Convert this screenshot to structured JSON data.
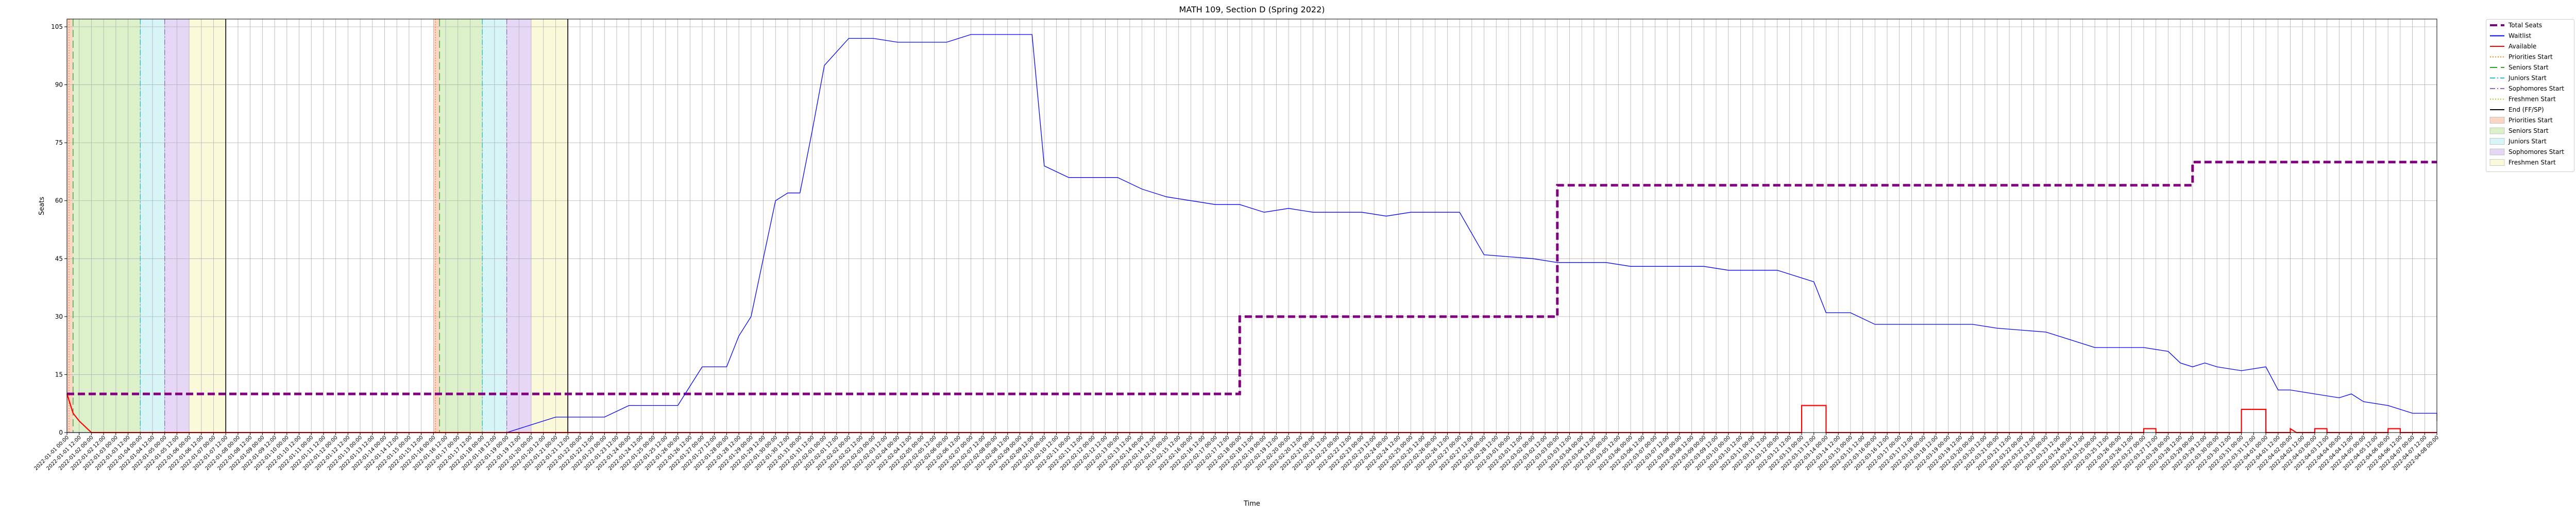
{
  "chart_data": {
    "type": "line",
    "title": "MATH 109, Section D (Spring 2022)",
    "xlabel": "Time",
    "ylabel": "Seats",
    "ylim": [
      0,
      107
    ],
    "yticks": [
      0,
      15,
      30,
      45,
      60,
      75,
      90,
      105
    ],
    "grid": true,
    "legend_placement": "outside-right",
    "time_start": "2022-01-01",
    "time_end": "2022-04-08",
    "x_tick_every_hours": 12,
    "series": [
      {
        "name": "Total Seats",
        "color": "#800080",
        "style": "dashed",
        "points": [
          [
            "2022-01-01",
            10
          ],
          [
            "2022-02-18",
            10
          ],
          [
            "2022-02-18",
            30
          ],
          [
            "2022-03-03",
            30
          ],
          [
            "2022-03-03",
            64
          ],
          [
            "2022-03-29",
            64
          ],
          [
            "2022-03-29",
            70
          ],
          [
            "2022-04-08",
            70
          ]
        ]
      },
      {
        "name": "Waitlist",
        "color": "#0000ff",
        "style": "solid",
        "points": [
          [
            "2022-01-01",
            0
          ],
          [
            "2022-01-19",
            0
          ],
          [
            "2022-01-20",
            2
          ],
          [
            "2022-01-21",
            4
          ],
          [
            "2022-01-23",
            4
          ],
          [
            "2022-01-24",
            7
          ],
          [
            "2022-01-26",
            7
          ],
          [
            "2022-01-26T12:00",
            12
          ],
          [
            "2022-01-27",
            17
          ],
          [
            "2022-01-28",
            17
          ],
          [
            "2022-01-28T12:00",
            25
          ],
          [
            "2022-01-29",
            30
          ],
          [
            "2022-01-29T12:00",
            45
          ],
          [
            "2022-01-30",
            60
          ],
          [
            "2022-01-30T12:00",
            62
          ],
          [
            "2022-01-31",
            62
          ],
          [
            "2022-01-31T12:00",
            78
          ],
          [
            "2022-02-01",
            95
          ],
          [
            "2022-02-02",
            102
          ],
          [
            "2022-02-03",
            102
          ],
          [
            "2022-02-04",
            101
          ],
          [
            "2022-02-05",
            101
          ],
          [
            "2022-02-06",
            101
          ],
          [
            "2022-02-07",
            103
          ],
          [
            "2022-02-09",
            103
          ],
          [
            "2022-02-09T12:00",
            103
          ],
          [
            "2022-02-10",
            69
          ],
          [
            "2022-02-11",
            66
          ],
          [
            "2022-02-13",
            66
          ],
          [
            "2022-02-14",
            63
          ],
          [
            "2022-02-15",
            61
          ],
          [
            "2022-02-16",
            60
          ],
          [
            "2022-02-17",
            59
          ],
          [
            "2022-02-18",
            59
          ],
          [
            "2022-02-19",
            57
          ],
          [
            "2022-02-20",
            58
          ],
          [
            "2022-02-21",
            57
          ],
          [
            "2022-02-22",
            57
          ],
          [
            "2022-02-23",
            57
          ],
          [
            "2022-02-24",
            56
          ],
          [
            "2022-02-25",
            57
          ],
          [
            "2022-02-27",
            57
          ],
          [
            "2022-02-28",
            46
          ],
          [
            "2022-03-02",
            45
          ],
          [
            "2022-03-03",
            44
          ],
          [
            "2022-03-05",
            44
          ],
          [
            "2022-03-06",
            43
          ],
          [
            "2022-03-09",
            43
          ],
          [
            "2022-03-10",
            42
          ],
          [
            "2022-03-12",
            42
          ],
          [
            "2022-03-13",
            40
          ],
          [
            "2022-03-13T12:00",
            39
          ],
          [
            "2022-03-14",
            31
          ],
          [
            "2022-03-15",
            31
          ],
          [
            "2022-03-16",
            28
          ],
          [
            "2022-03-19",
            28
          ],
          [
            "2022-03-20",
            28
          ],
          [
            "2022-03-21",
            27
          ],
          [
            "2022-03-23",
            26
          ],
          [
            "2022-03-24",
            24
          ],
          [
            "2022-03-25",
            22
          ],
          [
            "2022-03-26",
            22
          ],
          [
            "2022-03-27",
            22
          ],
          [
            "2022-03-28",
            21
          ],
          [
            "2022-03-28T12:00",
            18
          ],
          [
            "2022-03-29",
            17
          ],
          [
            "2022-03-29T12:00",
            18
          ],
          [
            "2022-03-30",
            17
          ],
          [
            "2022-03-31",
            16
          ],
          [
            "2022-04-01",
            17
          ],
          [
            "2022-04-01T12:00",
            11
          ],
          [
            "2022-04-02",
            11
          ],
          [
            "2022-04-03",
            10
          ],
          [
            "2022-04-04",
            9
          ],
          [
            "2022-04-04T12:00",
            10
          ],
          [
            "2022-04-05",
            8
          ],
          [
            "2022-04-06",
            7
          ],
          [
            "2022-04-07",
            5
          ],
          [
            "2022-04-08",
            5
          ],
          [
            "2022-04-08",
            3
          ]
        ]
      },
      {
        "name": "Available",
        "color": "#ff0000",
        "style": "solid",
        "points": [
          [
            "2022-01-01",
            10
          ],
          [
            "2022-01-01T06:00",
            5
          ],
          [
            "2022-01-01T12:00",
            3
          ],
          [
            "2022-01-02",
            0
          ],
          [
            "2022-03-13",
            0
          ],
          [
            "2022-03-13",
            7
          ],
          [
            "2022-03-14",
            7
          ],
          [
            "2022-03-14",
            0
          ],
          [
            "2022-03-27",
            0
          ],
          [
            "2022-03-27",
            1
          ],
          [
            "2022-03-27T12:00",
            1
          ],
          [
            "2022-03-27T12:00",
            0
          ],
          [
            "2022-03-31",
            0
          ],
          [
            "2022-03-31",
            6
          ],
          [
            "2022-04-01",
            6
          ],
          [
            "2022-04-01",
            0
          ],
          [
            "2022-04-02",
            0
          ],
          [
            "2022-04-02",
            1
          ],
          [
            "2022-04-02T06:00",
            0
          ],
          [
            "2022-04-03",
            0
          ],
          [
            "2022-04-03",
            1
          ],
          [
            "2022-04-03T12:00",
            1
          ],
          [
            "2022-04-03T12:00",
            0
          ],
          [
            "2022-04-06",
            0
          ],
          [
            "2022-04-06",
            1
          ],
          [
            "2022-04-06T12:00",
            1
          ],
          [
            "2022-04-06T12:00",
            0
          ],
          [
            "2022-04-08",
            0
          ]
        ]
      }
    ],
    "phases": [
      {
        "label": "Priorities Start",
        "color": "#f4a582",
        "start": "2022-01-01",
        "end": "2022-01-01T06:00"
      },
      {
        "label": "Seniors Start",
        "color": "#b2df8a",
        "start": "2022-01-01T06:00",
        "end": "2022-01-04"
      },
      {
        "label": "Juniors Start",
        "color": "#a6e6ea",
        "start": "2022-01-04",
        "end": "2022-01-05"
      },
      {
        "label": "Sophomores Start",
        "color": "#c7a6ea",
        "start": "2022-01-05",
        "end": "2022-01-06"
      },
      {
        "label": "Freshmen Start",
        "color": "#f4f4b0",
        "start": "2022-01-06",
        "end": "2022-01-07T12:00"
      },
      {
        "label": "Priorities Start",
        "color": "#f4a582",
        "start": "2022-01-16",
        "end": "2022-01-16T06:00"
      },
      {
        "label": "Seniors Start",
        "color": "#b2df8a",
        "start": "2022-01-16T06:00",
        "end": "2022-01-18"
      },
      {
        "label": "Juniors Start",
        "color": "#a6e6ea",
        "start": "2022-01-18",
        "end": "2022-01-19"
      },
      {
        "label": "Sophomores Start",
        "color": "#c7a6ea",
        "start": "2022-01-19",
        "end": "2022-01-20"
      },
      {
        "label": "Freshmen Start",
        "color": "#f4f4b0",
        "start": "2022-01-20",
        "end": "2022-01-21T12:00"
      }
    ],
    "vlines": [
      {
        "label": "Priorities Start",
        "color": "#ff7f0e",
        "style": "dotted",
        "at": "2022-01-01T02:00"
      },
      {
        "label": "Seniors Start",
        "color": "#2ca02c",
        "style": "dashed",
        "at": "2022-01-01T06:00"
      },
      {
        "label": "Juniors Start",
        "color": "#17becf",
        "style": "dashdot",
        "at": "2022-01-04"
      },
      {
        "label": "Sophomores Start",
        "color": "#9467bd",
        "style": "dashdot",
        "at": "2022-01-05"
      },
      {
        "label": "End (FF/SP)",
        "color": "#000000",
        "style": "solid",
        "at": "2022-01-07T12:00"
      },
      {
        "label": "Priorities Start",
        "color": "#ff7f0e",
        "style": "dotted",
        "at": "2022-01-16T02:00"
      },
      {
        "label": "Seniors Start",
        "color": "#2ca02c",
        "style": "dashed",
        "at": "2022-01-16T06:00"
      },
      {
        "label": "Juniors Start",
        "color": "#17becf",
        "style": "dashdot",
        "at": "2022-01-18"
      },
      {
        "label": "Sophomores Start",
        "color": "#9467bd",
        "style": "dashdot",
        "at": "2022-01-19"
      },
      {
        "label": "End (FF/SP)",
        "color": "#000000",
        "style": "solid",
        "at": "2022-01-21T12:00"
      }
    ],
    "legend": [
      {
        "label": "Total Seats",
        "kind": "line",
        "color": "#800080",
        "style": "dashed"
      },
      {
        "label": "Waitlist",
        "kind": "line",
        "color": "#0000ff",
        "style": "solid"
      },
      {
        "label": "Available",
        "kind": "line",
        "color": "#ff0000",
        "style": "solid"
      },
      {
        "label": "Priorities Start",
        "kind": "line",
        "color": "#ff7f0e",
        "style": "dotted"
      },
      {
        "label": "Seniors Start",
        "kind": "line",
        "color": "#2ca02c",
        "style": "dashed"
      },
      {
        "label": "Juniors Start",
        "kind": "line",
        "color": "#17becf",
        "style": "dashdot"
      },
      {
        "label": "Sophomores Start",
        "kind": "line",
        "color": "#9467bd",
        "style": "dashdot"
      },
      {
        "label": "Freshmen Start",
        "kind": "line",
        "color": "#bcbd22",
        "style": "dotted"
      },
      {
        "label": "End (FF/SP)",
        "kind": "line",
        "color": "#000000",
        "style": "solid"
      },
      {
        "label": "Priorities Start",
        "kind": "patch",
        "color": "#f4a582"
      },
      {
        "label": "Seniors Start",
        "kind": "patch",
        "color": "#b2df8a"
      },
      {
        "label": "Juniors Start",
        "kind": "patch",
        "color": "#a6e6ea"
      },
      {
        "label": "Sophomores Start",
        "kind": "patch",
        "color": "#c7a6ea"
      },
      {
        "label": "Freshmen Start",
        "kind": "patch",
        "color": "#f4f4b0"
      }
    ]
  }
}
